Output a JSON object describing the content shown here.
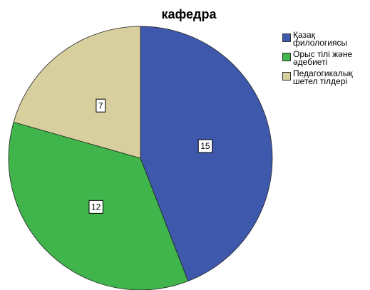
{
  "chart_data": {
    "type": "pie",
    "title": "кафедра",
    "categories": [
      "Қазақ филологиясы",
      "Орыс тілі және әдебиеті",
      "Педагогикалық шетел тілдері"
    ],
    "values": [
      15,
      12,
      7
    ],
    "colors": [
      "#3e58ac",
      "#3fb54b",
      "#d8cf9f"
    ]
  }
}
